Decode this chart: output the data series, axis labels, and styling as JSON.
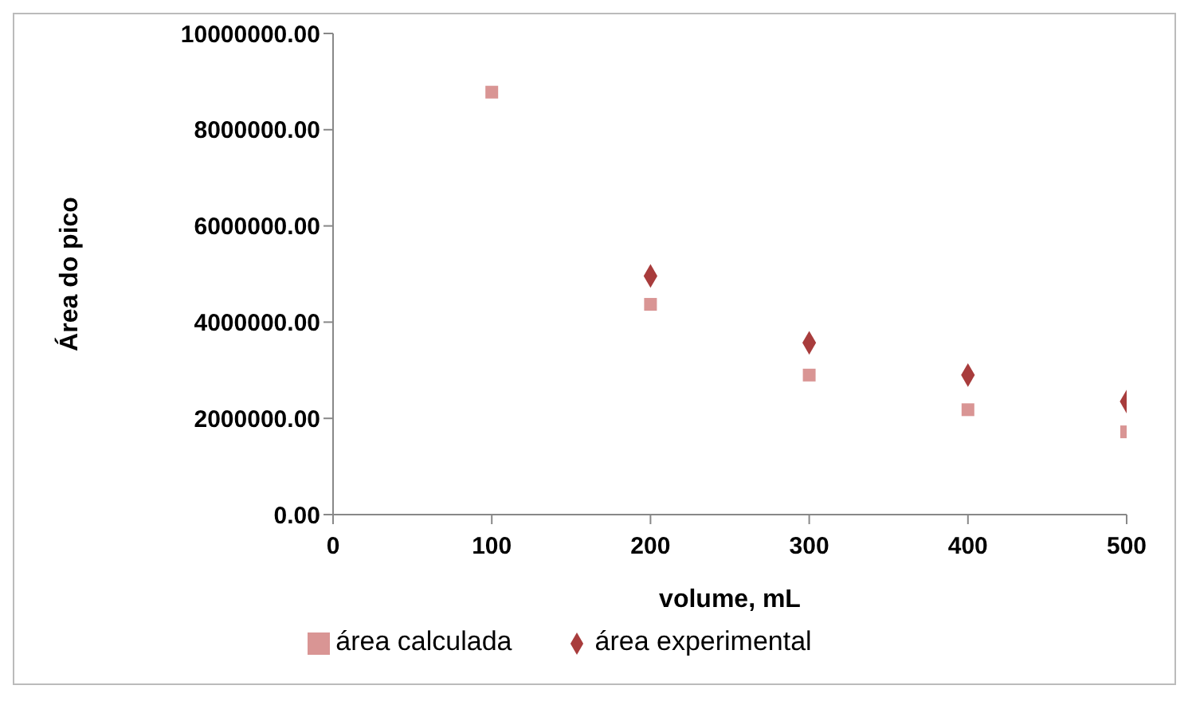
{
  "chart_data": {
    "type": "scatter",
    "xlabel": "volume, mL",
    "ylabel": "Área do pico",
    "x": [
      100,
      200,
      300,
      400,
      500
    ],
    "series": [
      {
        "name": "área experimental",
        "color": "#a83c3c",
        "marker": "diamond",
        "values": [
          null,
          4960000,
          3570000,
          2900000,
          2350000
        ]
      },
      {
        "name": "área calculada",
        "color": "#d99594",
        "marker": "square",
        "values": [
          8780000,
          4370000,
          2900000,
          2180000,
          1720000
        ]
      }
    ],
    "xlim": [
      0,
      500
    ],
    "xticks": [
      0,
      100,
      200,
      300,
      400,
      500
    ],
    "ylim": [
      0,
      10000000
    ],
    "yticks": [
      {
        "value": 0,
        "label": "0.00"
      },
      {
        "value": 2000000,
        "label": "2000000.00"
      },
      {
        "value": 4000000,
        "label": "4000000.00"
      },
      {
        "value": 6000000,
        "label": "6000000.00"
      },
      {
        "value": 8000000,
        "label": "8000000.00"
      },
      {
        "value": 10000000,
        "label": "10000000.00"
      }
    ],
    "grid": false,
    "legend": "bottom"
  }
}
